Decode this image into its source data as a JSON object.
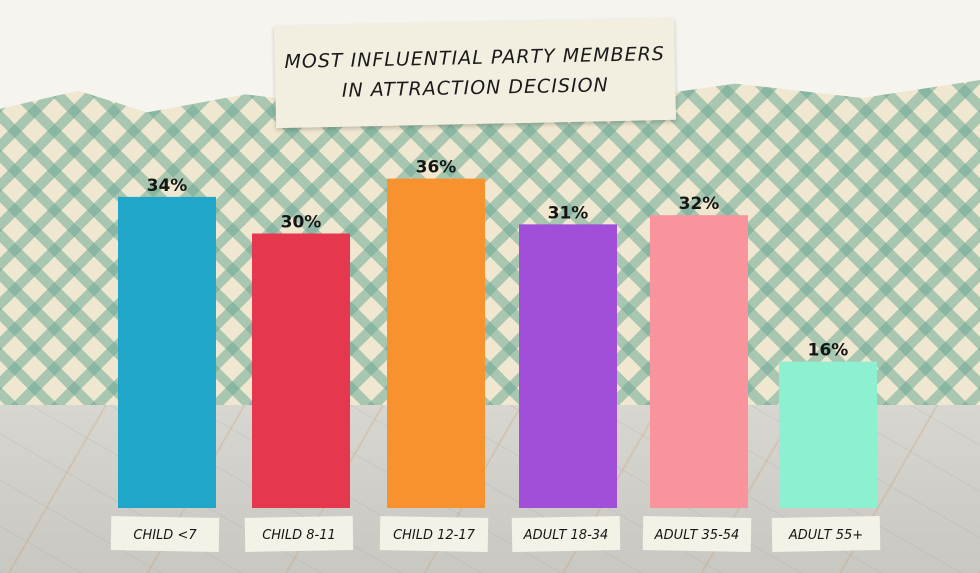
{
  "chart_data": {
    "type": "bar",
    "title": "MOST INFLUENTIAL PARTY MEMBERS IN ATTRACTION DECISION",
    "title_lines": [
      "MOST INFLUENTIAL PARTY MEMBERS",
      "IN ATTRACTION DECISION"
    ],
    "categories": [
      "CHILD <7",
      "CHILD 8-11",
      "CHILD 12-17",
      "ADULT 18-34",
      "ADULT 35-54",
      "ADULT 55+"
    ],
    "values": [
      34,
      30,
      36,
      31,
      32,
      16
    ],
    "data_labels": [
      "34%",
      "30%",
      "36%",
      "31%",
      "32%",
      "16%"
    ],
    "colors": [
      "#1fa6c9",
      "#e5384f",
      "#f7922e",
      "#a14fd9",
      "#f9939c",
      "#8df0d0"
    ],
    "unit": "%",
    "ylim": [
      0,
      36
    ],
    "grid": false,
    "legend": "none"
  }
}
